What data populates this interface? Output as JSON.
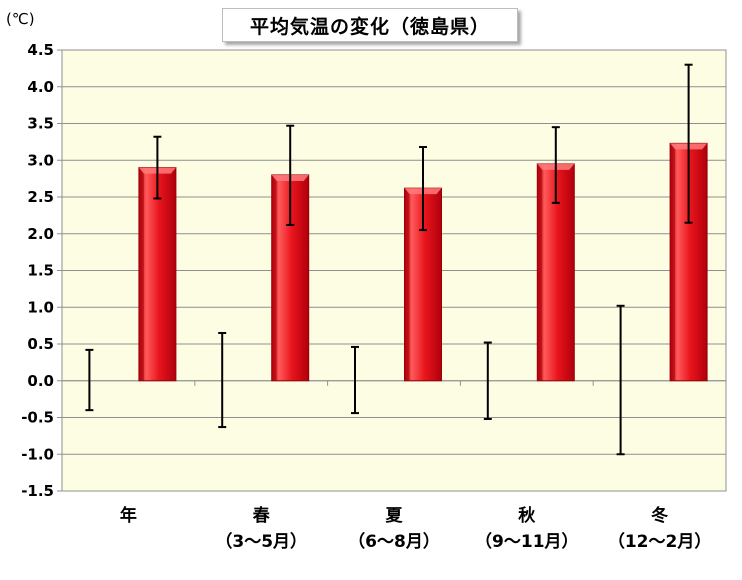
{
  "chart_data": {
    "type": "bar",
    "title": "平均気温の変化（徳島県）",
    "unit_label": "(℃)",
    "categories": [
      {
        "name": "年",
        "sub": ""
      },
      {
        "name": "春",
        "sub": "（3〜5月）"
      },
      {
        "name": "夏",
        "sub": "（6〜8月）"
      },
      {
        "name": "秋",
        "sub": "（9〜11月）"
      },
      {
        "name": "冬",
        "sub": "（12〜2月）"
      }
    ],
    "ylim": [
      -1.5,
      4.5
    ],
    "ytick_step": 0.5,
    "yticks": [
      "4.5",
      "4.0",
      "3.5",
      "3.0",
      "2.5",
      "2.0",
      "1.5",
      "1.0",
      "0.5",
      "0.0",
      "-0.5",
      "-1.0",
      "-1.5"
    ],
    "grid": true,
    "series": [
      {
        "kind": "bar",
        "color": "#e8141c",
        "values": [
          2.9,
          2.8,
          2.62,
          2.95,
          3.23
        ],
        "error_low": [
          2.48,
          2.12,
          2.05,
          2.42,
          2.15
        ],
        "error_high": [
          3.32,
          3.47,
          3.18,
          3.45,
          4.3
        ]
      },
      {
        "kind": "errorbar-only",
        "color": "#000000",
        "values": [
          0.0,
          0.0,
          0.0,
          0.0,
          0.0
        ],
        "error_low": [
          -0.4,
          -0.63,
          -0.44,
          -0.52,
          -1.0
        ],
        "error_high": [
          0.42,
          0.65,
          0.46,
          0.52,
          1.02
        ]
      }
    ],
    "colors": {
      "plot_bg": "#fdfde3",
      "grid": "#8f8f8f",
      "axis": "#8f8f8f",
      "bar_fill": "#e8141c",
      "bar_highlight": "#ff7b7b",
      "bar_shade": "#a80008"
    }
  }
}
